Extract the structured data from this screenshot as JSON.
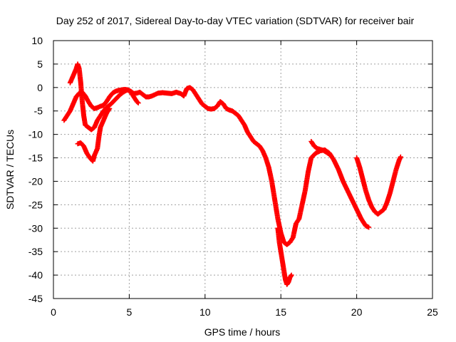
{
  "chart_data": {
    "type": "scatter",
    "title": "Day 252 of 2017, Sidereal Day-to-day VTEC variation (SDTVAR) for receiver bair",
    "xlabel": "GPS time / hours",
    "ylabel": "SDTVAR / TECUs",
    "xlim": [
      0,
      25
    ],
    "ylim": [
      -45,
      10
    ],
    "x_ticks": [
      0,
      5,
      10,
      15,
      20,
      25
    ],
    "y_ticks": [
      10,
      5,
      0,
      -5,
      -10,
      -15,
      -20,
      -25,
      -30,
      -35,
      -40,
      -45
    ],
    "grid": true,
    "marker": "+",
    "legend": "none",
    "series": [
      {
        "color": "#ff0000",
        "segments": [
          [
            [
              0.7,
              -7
            ],
            [
              0.9,
              -6
            ],
            [
              1.1,
              -5
            ],
            [
              1.3,
              -3.5
            ],
            [
              1.5,
              -2
            ],
            [
              1.7,
              -1.2
            ],
            [
              1.9,
              -1
            ],
            [
              2.1,
              -1.8
            ],
            [
              2.3,
              -3
            ],
            [
              2.5,
              -4
            ],
            [
              2.7,
              -4.5
            ],
            [
              2.9,
              -4.3
            ],
            [
              3.1,
              -4
            ],
            [
              3.3,
              -3.8
            ],
            [
              3.5,
              -3
            ],
            [
              3.7,
              -2
            ],
            [
              3.9,
              -1.2
            ],
            [
              4.1,
              -0.8
            ],
            [
              4.3,
              -0.6
            ],
            [
              4.5,
              -0.5
            ],
            [
              4.7,
              -0.4
            ],
            [
              4.9,
              -0.5
            ],
            [
              5.1,
              -0.8
            ],
            [
              5.3,
              -1.3
            ],
            [
              5.5,
              -1.2
            ],
            [
              5.7,
              -1
            ],
            [
              5.9,
              -1.5
            ],
            [
              6.1,
              -2
            ],
            [
              6.3,
              -2
            ],
            [
              6.5,
              -1.8
            ],
            [
              6.7,
              -1.5
            ],
            [
              6.9,
              -1.2
            ],
            [
              7.2,
              -1.1
            ],
            [
              7.5,
              -1.2
            ],
            [
              7.8,
              -1.3
            ],
            [
              8.1,
              -1
            ],
            [
              8.4,
              -1.3
            ],
            [
              8.6,
              -1.8
            ],
            [
              8.8,
              -0.2
            ],
            [
              9.0,
              0
            ],
            [
              9.2,
              -0.5
            ],
            [
              9.4,
              -1.5
            ],
            [
              9.6,
              -2.5
            ],
            [
              9.8,
              -3.5
            ],
            [
              10.0,
              -4
            ],
            [
              10.2,
              -4.5
            ],
            [
              10.4,
              -4.6
            ],
            [
              10.6,
              -4.5
            ],
            [
              10.8,
              -4
            ],
            [
              11.0,
              -3
            ],
            [
              11.2,
              -3.5
            ],
            [
              11.4,
              -4.5
            ],
            [
              11.6,
              -4.8
            ],
            [
              11.8,
              -5
            ],
            [
              12.0,
              -5.5
            ],
            [
              12.2,
              -6
            ],
            [
              12.4,
              -7
            ],
            [
              12.6,
              -8
            ],
            [
              12.8,
              -9.5
            ],
            [
              13.0,
              -10.5
            ],
            [
              13.2,
              -11.5
            ],
            [
              13.4,
              -12
            ],
            [
              13.6,
              -12.5
            ],
            [
              13.8,
              -13.5
            ],
            [
              14.0,
              -15
            ],
            [
              14.2,
              -17
            ],
            [
              14.4,
              -20
            ],
            [
              14.6,
              -24
            ],
            [
              14.8,
              -28
            ],
            [
              15.0,
              -31
            ],
            [
              15.2,
              -33
            ],
            [
              15.4,
              -33.5
            ],
            [
              15.6,
              -33
            ],
            [
              15.8,
              -32
            ],
            [
              16.0,
              -29
            ],
            [
              16.2,
              -28
            ],
            [
              16.4,
              -25
            ],
            [
              16.6,
              -22
            ],
            [
              16.8,
              -18
            ],
            [
              17.0,
              -15
            ],
            [
              17.3,
              -14
            ],
            [
              17.6,
              -13.5
            ],
            [
              17.9,
              -13.3
            ],
            [
              18.2,
              -14
            ],
            [
              18.5,
              -15.5
            ],
            [
              18.8,
              -17.5
            ],
            [
              19.1,
              -20
            ],
            [
              19.4,
              -22
            ],
            [
              19.7,
              -24
            ],
            [
              20.0,
              -26
            ],
            [
              20.3,
              -28
            ],
            [
              20.6,
              -29.5
            ],
            [
              20.8,
              -29.8
            ]
          ],
          [
            [
              1.1,
              1
            ],
            [
              1.3,
              2.5
            ],
            [
              1.5,
              4
            ],
            [
              1.6,
              5
            ],
            [
              1.7,
              4
            ],
            [
              1.8,
              1
            ],
            [
              1.9,
              -3
            ],
            [
              2.0,
              -6
            ],
            [
              2.1,
              -8
            ],
            [
              2.3,
              -8.5
            ],
            [
              2.5,
              -9
            ],
            [
              2.7,
              -8.5
            ],
            [
              2.9,
              -7
            ],
            [
              3.1,
              -6
            ],
            [
              3.3,
              -5
            ],
            [
              3.5,
              -4.3
            ],
            [
              3.8,
              -3.5
            ],
            [
              4.1,
              -2.5
            ],
            [
              4.4,
              -1.5
            ],
            [
              4.7,
              -0.8
            ],
            [
              4.9,
              -0.5
            ],
            [
              5.1,
              -1
            ],
            [
              5.3,
              -2
            ],
            [
              5.5,
              -3
            ],
            [
              5.6,
              -3.3
            ]
          ],
          [
            [
              1.6,
              -12
            ],
            [
              1.8,
              -11.8
            ],
            [
              2.0,
              -12.5
            ],
            [
              2.2,
              -14
            ],
            [
              2.4,
              -15
            ],
            [
              2.6,
              -15.7
            ],
            [
              2.7,
              -14.5
            ],
            [
              2.9,
              -13
            ],
            [
              3.0,
              -10.5
            ],
            [
              3.1,
              -8.5
            ],
            [
              3.3,
              -7
            ],
            [
              3.5,
              -5.5
            ],
            [
              3.7,
              -4.5
            ]
          ],
          [
            [
              14.8,
              -30
            ],
            [
              14.9,
              -33
            ],
            [
              15.0,
              -35
            ],
            [
              15.1,
              -37
            ],
            [
              15.2,
              -39
            ],
            [
              15.3,
              -41
            ],
            [
              15.4,
              -42
            ],
            [
              15.5,
              -41.5
            ],
            [
              15.6,
              -40.5
            ],
            [
              15.7,
              -40
            ]
          ],
          [
            [
              17.0,
              -11.5
            ],
            [
              17.2,
              -12.5
            ],
            [
              17.4,
              -13
            ],
            [
              17.6,
              -13.2
            ],
            [
              17.8,
              -13.4
            ],
            [
              18.0,
              -13.8
            ],
            [
              18.3,
              -14.5
            ]
          ],
          [
            [
              20.0,
              -15
            ],
            [
              20.2,
              -17
            ],
            [
              20.4,
              -19.5
            ],
            [
              20.6,
              -22
            ],
            [
              20.8,
              -24
            ],
            [
              21.0,
              -25.5
            ],
            [
              21.2,
              -26.5
            ],
            [
              21.4,
              -27
            ],
            [
              21.6,
              -26.5
            ],
            [
              21.8,
              -26
            ],
            [
              22.0,
              -24.5
            ],
            [
              22.2,
              -22.5
            ],
            [
              22.4,
              -20
            ],
            [
              22.6,
              -17.5
            ],
            [
              22.8,
              -15.5
            ],
            [
              22.9,
              -14.8
            ]
          ]
        ]
      }
    ]
  }
}
